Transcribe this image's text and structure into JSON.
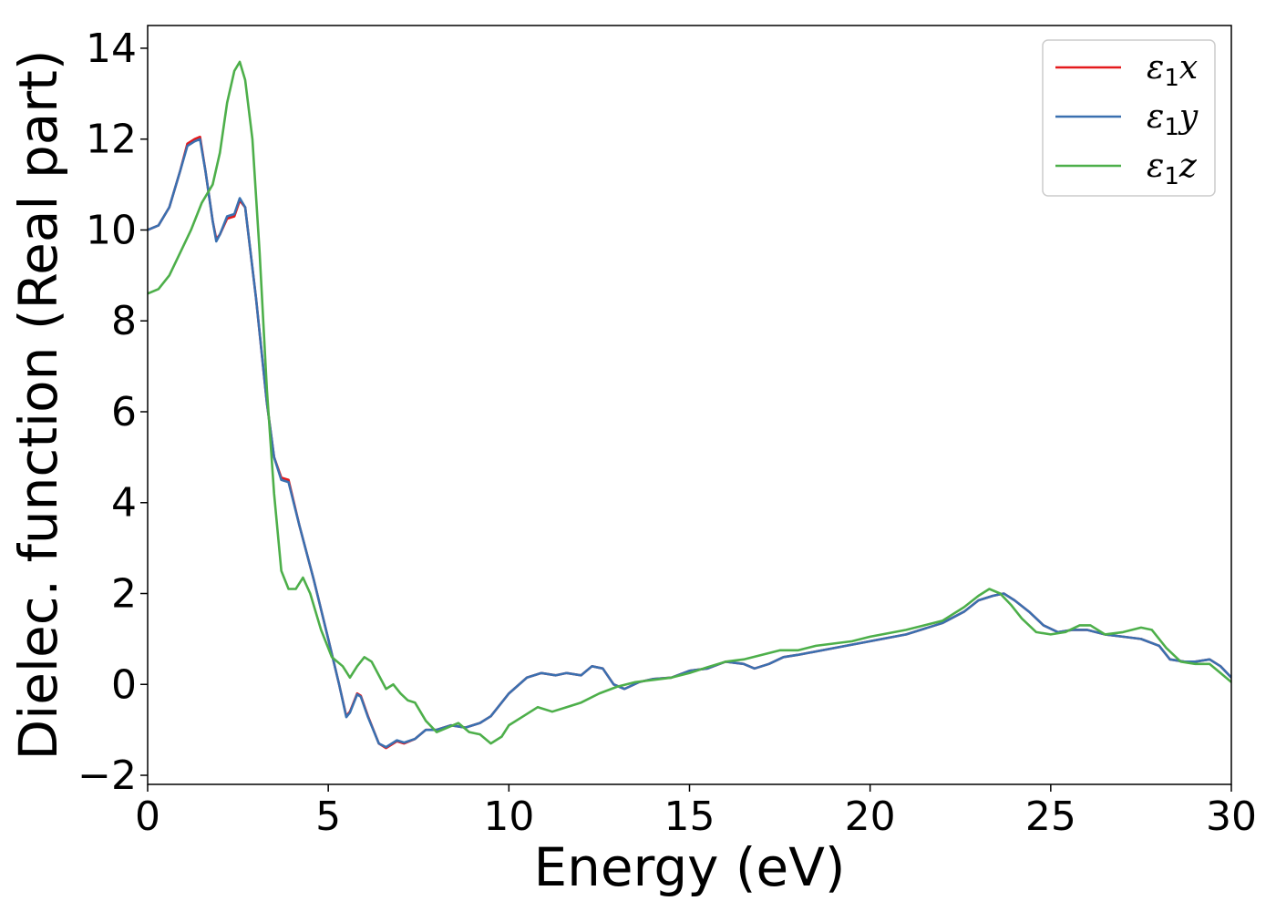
{
  "chart_data": {
    "type": "line",
    "title": "",
    "xlabel": "Energy (eV)",
    "ylabel": "Dielec. function (Real part)",
    "xlim": [
      0,
      30
    ],
    "ylim": [
      -2.2,
      14.5
    ],
    "x_ticks": [
      0,
      5,
      10,
      15,
      20,
      25,
      30
    ],
    "y_ticks": [
      -2,
      0,
      2,
      4,
      6,
      8,
      10,
      12,
      14
    ],
    "x_tick_labels": [
      "0",
      "5",
      "10",
      "15",
      "20",
      "25",
      "30"
    ],
    "y_tick_labels": [
      "−2",
      "0",
      "2",
      "4",
      "6",
      "8",
      "10",
      "12",
      "14"
    ],
    "grid": false,
    "legend_position": "top-right",
    "series": [
      {
        "name": "ε₁x",
        "legend_main": "ε",
        "legend_sub": "1",
        "legend_var": "x",
        "color": "#e41a1c",
        "points": [
          [
            0,
            10.0
          ],
          [
            0.3,
            10.1
          ],
          [
            0.6,
            10.5
          ],
          [
            0.9,
            11.3
          ],
          [
            1.1,
            11.9
          ],
          [
            1.3,
            12.0
          ],
          [
            1.45,
            12.05
          ],
          [
            1.6,
            11.3
          ],
          [
            1.8,
            10.2
          ],
          [
            1.9,
            9.8
          ],
          [
            2.0,
            9.9
          ],
          [
            2.2,
            10.25
          ],
          [
            2.4,
            10.3
          ],
          [
            2.55,
            10.65
          ],
          [
            2.7,
            10.5
          ],
          [
            3.0,
            8.5
          ],
          [
            3.3,
            6.2
          ],
          [
            3.5,
            5.0
          ],
          [
            3.7,
            4.55
          ],
          [
            3.9,
            4.5
          ],
          [
            4.2,
            3.5
          ],
          [
            4.6,
            2.3
          ],
          [
            5.0,
            1.0
          ],
          [
            5.3,
            0.0
          ],
          [
            5.5,
            -0.7
          ],
          [
            5.6,
            -0.6
          ],
          [
            5.8,
            -0.2
          ],
          [
            5.9,
            -0.25
          ],
          [
            6.1,
            -0.7
          ],
          [
            6.4,
            -1.3
          ],
          [
            6.6,
            -1.4
          ],
          [
            6.9,
            -1.25
          ],
          [
            7.1,
            -1.3
          ],
          [
            7.4,
            -1.2
          ],
          [
            7.7,
            -1.0
          ],
          [
            8.0,
            -1.0
          ],
          [
            8.4,
            -0.9
          ],
          [
            8.8,
            -0.95
          ],
          [
            9.2,
            -0.85
          ],
          [
            9.5,
            -0.7
          ],
          [
            10.0,
            -0.2
          ],
          [
            10.5,
            0.15
          ],
          [
            10.9,
            0.25
          ],
          [
            11.3,
            0.2
          ],
          [
            11.6,
            0.25
          ],
          [
            12.0,
            0.2
          ],
          [
            12.3,
            0.4
          ],
          [
            12.6,
            0.35
          ],
          [
            12.9,
            0.0
          ],
          [
            13.2,
            -0.1
          ],
          [
            13.6,
            0.05
          ],
          [
            14.0,
            0.12
          ],
          [
            14.5,
            0.15
          ],
          [
            15.0,
            0.3
          ],
          [
            15.5,
            0.35
          ],
          [
            16.0,
            0.5
          ],
          [
            16.5,
            0.45
          ],
          [
            16.8,
            0.35
          ],
          [
            17.2,
            0.45
          ],
          [
            17.6,
            0.6
          ],
          [
            18.0,
            0.65
          ],
          [
            19.0,
            0.8
          ],
          [
            20.0,
            0.95
          ],
          [
            21.0,
            1.1
          ],
          [
            22.0,
            1.35
          ],
          [
            22.6,
            1.6
          ],
          [
            23.0,
            1.85
          ],
          [
            23.4,
            1.95
          ],
          [
            23.7,
            2.0
          ],
          [
            24.0,
            1.85
          ],
          [
            24.4,
            1.6
          ],
          [
            24.8,
            1.3
          ],
          [
            25.2,
            1.15
          ],
          [
            25.6,
            1.2
          ],
          [
            26.0,
            1.2
          ],
          [
            26.5,
            1.1
          ],
          [
            27.0,
            1.05
          ],
          [
            27.5,
            1.0
          ],
          [
            28.0,
            0.85
          ],
          [
            28.3,
            0.55
          ],
          [
            28.7,
            0.5
          ],
          [
            29.0,
            0.5
          ],
          [
            29.4,
            0.55
          ],
          [
            29.7,
            0.4
          ],
          [
            30.0,
            0.15
          ]
        ]
      },
      {
        "name": "ε₁y",
        "legend_main": "ε",
        "legend_sub": "1",
        "legend_var": "y",
        "color": "#3a70b0",
        "points": [
          [
            0,
            10.0
          ],
          [
            0.3,
            10.1
          ],
          [
            0.6,
            10.5
          ],
          [
            0.9,
            11.3
          ],
          [
            1.1,
            11.85
          ],
          [
            1.3,
            11.95
          ],
          [
            1.45,
            12.0
          ],
          [
            1.6,
            11.3
          ],
          [
            1.8,
            10.2
          ],
          [
            1.9,
            9.75
          ],
          [
            2.0,
            9.9
          ],
          [
            2.2,
            10.3
          ],
          [
            2.4,
            10.35
          ],
          [
            2.55,
            10.7
          ],
          [
            2.7,
            10.5
          ],
          [
            3.0,
            8.5
          ],
          [
            3.3,
            6.2
          ],
          [
            3.5,
            5.0
          ],
          [
            3.7,
            4.5
          ],
          [
            3.9,
            4.45
          ],
          [
            4.2,
            3.5
          ],
          [
            4.6,
            2.3
          ],
          [
            5.0,
            1.0
          ],
          [
            5.3,
            0.0
          ],
          [
            5.5,
            -0.72
          ],
          [
            5.6,
            -0.62
          ],
          [
            5.8,
            -0.22
          ],
          [
            5.9,
            -0.27
          ],
          [
            6.1,
            -0.72
          ],
          [
            6.4,
            -1.3
          ],
          [
            6.6,
            -1.38
          ],
          [
            6.9,
            -1.23
          ],
          [
            7.1,
            -1.28
          ],
          [
            7.4,
            -1.2
          ],
          [
            7.7,
            -1.0
          ],
          [
            8.0,
            -1.0
          ],
          [
            8.4,
            -0.9
          ],
          [
            8.8,
            -0.95
          ],
          [
            9.2,
            -0.85
          ],
          [
            9.5,
            -0.7
          ],
          [
            10.0,
            -0.2
          ],
          [
            10.5,
            0.15
          ],
          [
            10.9,
            0.25
          ],
          [
            11.3,
            0.2
          ],
          [
            11.6,
            0.25
          ],
          [
            12.0,
            0.2
          ],
          [
            12.3,
            0.4
          ],
          [
            12.6,
            0.35
          ],
          [
            12.9,
            0.0
          ],
          [
            13.2,
            -0.1
          ],
          [
            13.6,
            0.05
          ],
          [
            14.0,
            0.12
          ],
          [
            14.5,
            0.15
          ],
          [
            15.0,
            0.3
          ],
          [
            15.5,
            0.35
          ],
          [
            16.0,
            0.5
          ],
          [
            16.5,
            0.45
          ],
          [
            16.8,
            0.35
          ],
          [
            17.2,
            0.45
          ],
          [
            17.6,
            0.6
          ],
          [
            18.0,
            0.65
          ],
          [
            19.0,
            0.8
          ],
          [
            20.0,
            0.95
          ],
          [
            21.0,
            1.1
          ],
          [
            22.0,
            1.35
          ],
          [
            22.6,
            1.6
          ],
          [
            23.0,
            1.85
          ],
          [
            23.4,
            1.95
          ],
          [
            23.7,
            2.0
          ],
          [
            24.0,
            1.85
          ],
          [
            24.4,
            1.6
          ],
          [
            24.8,
            1.3
          ],
          [
            25.2,
            1.15
          ],
          [
            25.6,
            1.2
          ],
          [
            26.0,
            1.2
          ],
          [
            26.5,
            1.1
          ],
          [
            27.0,
            1.05
          ],
          [
            27.5,
            1.0
          ],
          [
            28.0,
            0.85
          ],
          [
            28.3,
            0.55
          ],
          [
            28.7,
            0.5
          ],
          [
            29.0,
            0.5
          ],
          [
            29.4,
            0.55
          ],
          [
            29.7,
            0.4
          ],
          [
            30.0,
            0.15
          ]
        ]
      },
      {
        "name": "ε₁z",
        "legend_main": "ε",
        "legend_sub": "1",
        "legend_var": "z",
        "color": "#4daf4a",
        "points": [
          [
            0,
            8.6
          ],
          [
            0.3,
            8.7
          ],
          [
            0.6,
            9.0
          ],
          [
            0.9,
            9.5
          ],
          [
            1.2,
            10.0
          ],
          [
            1.5,
            10.6
          ],
          [
            1.8,
            11.0
          ],
          [
            2.0,
            11.7
          ],
          [
            2.2,
            12.8
          ],
          [
            2.4,
            13.5
          ],
          [
            2.55,
            13.7
          ],
          [
            2.7,
            13.3
          ],
          [
            2.9,
            12.0
          ],
          [
            3.1,
            9.5
          ],
          [
            3.3,
            6.5
          ],
          [
            3.5,
            4.2
          ],
          [
            3.7,
            2.5
          ],
          [
            3.9,
            2.1
          ],
          [
            4.1,
            2.1
          ],
          [
            4.3,
            2.35
          ],
          [
            4.5,
            2.0
          ],
          [
            4.8,
            1.2
          ],
          [
            5.1,
            0.6
          ],
          [
            5.4,
            0.4
          ],
          [
            5.6,
            0.15
          ],
          [
            5.8,
            0.4
          ],
          [
            6.0,
            0.6
          ],
          [
            6.2,
            0.5
          ],
          [
            6.4,
            0.2
          ],
          [
            6.6,
            -0.1
          ],
          [
            6.8,
            0.0
          ],
          [
            7.0,
            -0.2
          ],
          [
            7.2,
            -0.35
          ],
          [
            7.4,
            -0.4
          ],
          [
            7.7,
            -0.8
          ],
          [
            8.0,
            -1.05
          ],
          [
            8.3,
            -0.95
          ],
          [
            8.6,
            -0.85
          ],
          [
            8.9,
            -1.05
          ],
          [
            9.2,
            -1.1
          ],
          [
            9.5,
            -1.3
          ],
          [
            9.8,
            -1.15
          ],
          [
            10.0,
            -0.9
          ],
          [
            10.4,
            -0.7
          ],
          [
            10.8,
            -0.5
          ],
          [
            11.2,
            -0.6
          ],
          [
            11.6,
            -0.5
          ],
          [
            12.0,
            -0.4
          ],
          [
            12.5,
            -0.2
          ],
          [
            13.0,
            -0.05
          ],
          [
            13.5,
            0.05
          ],
          [
            14.0,
            0.1
          ],
          [
            14.5,
            0.15
          ],
          [
            15.0,
            0.25
          ],
          [
            15.5,
            0.38
          ],
          [
            16.0,
            0.5
          ],
          [
            16.5,
            0.55
          ],
          [
            17.0,
            0.65
          ],
          [
            17.5,
            0.75
          ],
          [
            18.0,
            0.75
          ],
          [
            18.5,
            0.85
          ],
          [
            19.0,
            0.9
          ],
          [
            19.5,
            0.95
          ],
          [
            20.0,
            1.05
          ],
          [
            21.0,
            1.2
          ],
          [
            22.0,
            1.4
          ],
          [
            22.6,
            1.7
          ],
          [
            23.0,
            1.95
          ],
          [
            23.3,
            2.1
          ],
          [
            23.6,
            2.0
          ],
          [
            23.9,
            1.75
          ],
          [
            24.2,
            1.45
          ],
          [
            24.6,
            1.15
          ],
          [
            25.0,
            1.1
          ],
          [
            25.4,
            1.15
          ],
          [
            25.8,
            1.3
          ],
          [
            26.1,
            1.3
          ],
          [
            26.5,
            1.1
          ],
          [
            27.0,
            1.15
          ],
          [
            27.5,
            1.25
          ],
          [
            27.8,
            1.2
          ],
          [
            28.2,
            0.8
          ],
          [
            28.6,
            0.5
          ],
          [
            29.0,
            0.45
          ],
          [
            29.4,
            0.45
          ],
          [
            29.7,
            0.25
          ],
          [
            30.0,
            0.05
          ]
        ]
      }
    ]
  }
}
